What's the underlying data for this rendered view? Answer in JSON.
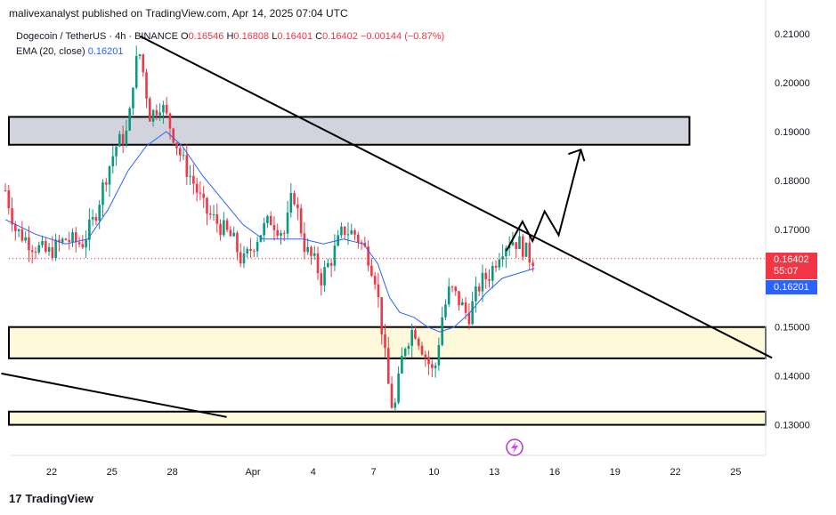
{
  "publisher_line": "malivexanalyst published on TradingView.com, Apr 14, 2025 07:04 UTC",
  "legend": {
    "symbol": "Dogecoin / TetherUS · 4h · BINANCE",
    "o_label": "O",
    "o_value": "0.16546",
    "h_label": "H",
    "h_value": "0.16808",
    "l_label": "L",
    "l_value": "0.16401",
    "c_label": "C",
    "c_value": "0.16402",
    "change": "−0.00144 (−0.87%)",
    "ema_label": "EMA (20, close)",
    "ema_value": "0.16201"
  },
  "price_tags": {
    "last_price": "0.16402",
    "countdown": "55:07",
    "ema": "0.16201"
  },
  "brand": {
    "name": "TradingView",
    "mark": "17"
  },
  "colors": {
    "up": "#089981",
    "down": "#f23645",
    "ema": "#2962ff",
    "resistance_zone": "#d1d4dc",
    "support_zone": "#fff9db",
    "trendline": "#000000"
  },
  "chart_data": {
    "type": "candlestick",
    "y_axis": {
      "ticks": [
        "0.21000",
        "0.20000",
        "0.19000",
        "0.18000",
        "0.17000",
        "0.15000",
        "0.14000",
        "0.13000"
      ],
      "tick_values": [
        0.21,
        0.2,
        0.19,
        0.18,
        0.17,
        0.15,
        0.14,
        0.13
      ],
      "range": [
        0.1288,
        0.2125
      ]
    },
    "x_axis": {
      "ticks": [
        "22",
        "25",
        "28",
        "Apr",
        "4",
        "7",
        "10",
        "13",
        "16",
        "19",
        "22",
        "25"
      ],
      "tick_days": [
        -10,
        -7,
        -4,
        0,
        3,
        6,
        9,
        12,
        15,
        18,
        21,
        24
      ],
      "range_days": [
        -12.5,
        25.8
      ],
      "note": "days relative to Apr 1, 2025"
    },
    "last_close": 0.16402,
    "ema_last": 0.16201,
    "zones": [
      {
        "name": "resistance",
        "top": 0.193,
        "bottom": 0.1873,
        "color": "#d1d4dc",
        "day_end": 21.7
      },
      {
        "name": "support-upper",
        "top": 0.15,
        "bottom": 0.1436,
        "color": "#fff9db"
      },
      {
        "name": "support-lower",
        "top": 0.1327,
        "bottom": 0.13,
        "color": "#fff9db"
      }
    ],
    "trendlines": [
      {
        "name": "descending-resistance",
        "from": [
          -5.6,
          0.2095
        ],
        "to": [
          25.8,
          0.1437
        ]
      },
      {
        "name": "lower-trendline",
        "from": [
          -12.5,
          0.1405
        ],
        "to": [
          -1.3,
          0.1316
        ]
      }
    ],
    "projection_path": [
      [
        12.6,
        0.1656
      ],
      [
        13.4,
        0.1716
      ],
      [
        13.9,
        0.1676
      ],
      [
        14.5,
        0.1737
      ],
      [
        15.2,
        0.1688
      ],
      [
        16.3,
        0.1863
      ]
    ],
    "candles_anchor": [
      [
        -12.3,
        0.178
      ],
      [
        -11.8,
        0.17
      ],
      [
        -11.0,
        0.167
      ],
      [
        -10.2,
        0.165
      ],
      [
        -9.3,
        0.168
      ],
      [
        -8.5,
        0.167
      ],
      [
        -7.9,
        0.172
      ],
      [
        -7.3,
        0.181
      ],
      [
        -6.8,
        0.187
      ],
      [
        -6.2,
        0.19
      ],
      [
        -5.9,
        0.203
      ],
      [
        -5.6,
        0.206
      ],
      [
        -5.1,
        0.193
      ],
      [
        -4.6,
        0.196
      ],
      [
        -4.0,
        0.19
      ],
      [
        -3.5,
        0.184
      ],
      [
        -3.0,
        0.18
      ],
      [
        -2.4,
        0.174
      ],
      [
        -1.7,
        0.171
      ],
      [
        -1.0,
        0.168
      ],
      [
        -0.5,
        0.163
      ],
      [
        0.3,
        0.169
      ],
      [
        0.9,
        0.172
      ],
      [
        1.6,
        0.169
      ],
      [
        2.0,
        0.178
      ],
      [
        2.6,
        0.166
      ],
      [
        3.1,
        0.163
      ],
      [
        3.4,
        0.16
      ],
      [
        3.9,
        0.164
      ],
      [
        4.5,
        0.17
      ],
      [
        5.1,
        0.169
      ],
      [
        5.7,
        0.165
      ],
      [
        6.1,
        0.16
      ],
      [
        6.4,
        0.15
      ],
      [
        6.7,
        0.139
      ],
      [
        7.0,
        0.132
      ],
      [
        7.5,
        0.146
      ],
      [
        8.0,
        0.15
      ],
      [
        8.6,
        0.144
      ],
      [
        9.0,
        0.14
      ],
      [
        9.4,
        0.152
      ],
      [
        9.8,
        0.158
      ],
      [
        10.3,
        0.155
      ],
      [
        10.7,
        0.152
      ],
      [
        11.3,
        0.159
      ],
      [
        11.8,
        0.161
      ],
      [
        12.3,
        0.166
      ],
      [
        12.8,
        0.168
      ],
      [
        13.3,
        0.167
      ],
      [
        13.8,
        0.164
      ],
      [
        14.0,
        0.164
      ]
    ],
    "ema_points": [
      [
        -12.3,
        0.172
      ],
      [
        -10.8,
        0.169
      ],
      [
        -9.3,
        0.167
      ],
      [
        -8.2,
        0.168
      ],
      [
        -7.2,
        0.174
      ],
      [
        -6.2,
        0.182
      ],
      [
        -5.3,
        0.187
      ],
      [
        -4.3,
        0.19
      ],
      [
        -3.5,
        0.187
      ],
      [
        -2.5,
        0.181
      ],
      [
        -1.5,
        0.176
      ],
      [
        -0.5,
        0.171
      ],
      [
        0.5,
        0.168
      ],
      [
        1.5,
        0.168
      ],
      [
        2.5,
        0.168
      ],
      [
        3.5,
        0.167
      ],
      [
        4.5,
        0.168
      ],
      [
        5.5,
        0.167
      ],
      [
        6.2,
        0.163
      ],
      [
        6.8,
        0.156
      ],
      [
        7.3,
        0.153
      ],
      [
        8.0,
        0.152
      ],
      [
        8.7,
        0.15
      ],
      [
        9.3,
        0.149
      ],
      [
        10.0,
        0.15
      ],
      [
        10.8,
        0.153
      ],
      [
        11.6,
        0.157
      ],
      [
        12.4,
        0.16
      ],
      [
        13.2,
        0.161
      ],
      [
        14.0,
        0.162
      ]
    ]
  }
}
